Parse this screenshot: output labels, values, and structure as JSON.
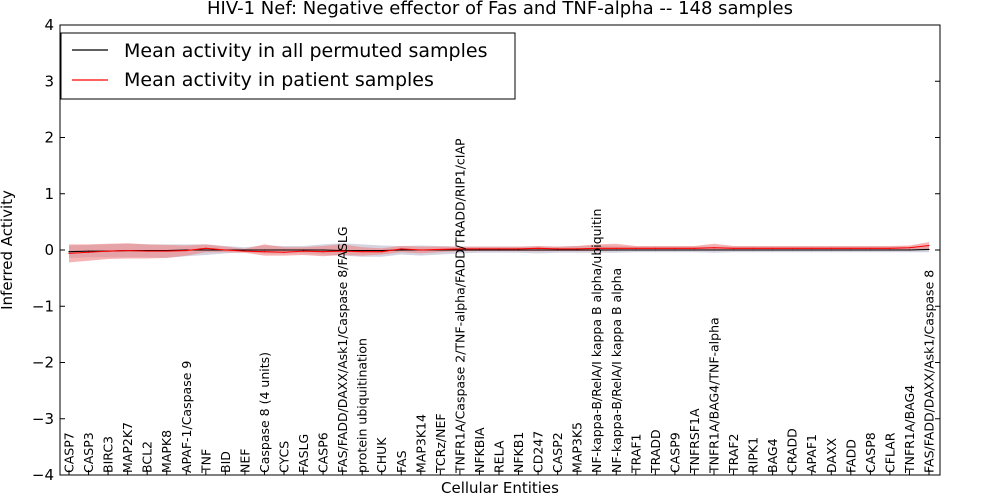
{
  "chart_data": {
    "type": "line",
    "title": "HIV-1 Nef: Negative effector of Fas and TNF-alpha -- 148 samples",
    "xlabel": "Cellular Entities",
    "ylabel": "Inferred Activity",
    "ylim": [
      -4,
      4
    ],
    "yticks": [
      "−4",
      "−3",
      "−2",
      "−1",
      "0",
      "1",
      "2",
      "3",
      "4"
    ],
    "ytick_values": [
      -4,
      -3,
      -2,
      -1,
      0,
      1,
      2,
      3,
      4
    ],
    "grid": false,
    "legend_position": "top-left",
    "categories": [
      "CASP7",
      "CASP3",
      "BIRC3",
      "MAP2K7",
      "BCL2",
      "MAPK8",
      "APAF-1/Caspase 9",
      "TNF",
      "BID",
      "NEF",
      "Caspase 8 (4 units)",
      "CYCS",
      "FASLG",
      "CASP6",
      "FAS/FADD/DAXX/Ask1/Caspase 8/FASLG",
      "protein ubiquitination",
      "CHUK",
      "FAS",
      "MAP3K14",
      "TCRz/NEF",
      "TNFR1A/Caspase 2/TNF-alpha/FADD/TRADD/RIP1/cIAP",
      "NFKBIA",
      "RELA",
      "NFKB1",
      "CD247",
      "CASP2",
      "MAP3K5",
      "NF-kappa-B/RelA/I kappa B alpha/ubiquitin",
      "NF-kappa-B/RelA/I kappa B alpha",
      "TRAF1",
      "TRADD",
      "CASP9",
      "TNFRSF1A",
      "TNFR1A/BAG4/TNF-alpha",
      "TRAF2",
      "RIPK1",
      "BAG4",
      "CRADD",
      "APAF1",
      "DAXX",
      "FADD",
      "CASP8",
      "CFLAR",
      "TNFR1A/BAG4",
      "FAS/FADD/DAXX/Ask1/Caspase 8"
    ],
    "series": [
      {
        "name": "Mean activity in all permuted samples",
        "color": "#000000",
        "band_color": "#b0b0c8",
        "values": [
          -0.03,
          -0.02,
          -0.02,
          -0.01,
          -0.01,
          -0.01,
          0.0,
          0.0,
          0.0,
          0.0,
          0.0,
          0.0,
          0.0,
          0.0,
          -0.01,
          -0.01,
          -0.01,
          0.0,
          0.0,
          0.0,
          0.0,
          0.0,
          0.0,
          0.0,
          0.0,
          0.0,
          0.0,
          0.0,
          0.0,
          0.0,
          0.0,
          0.0,
          0.0,
          0.0,
          0.0,
          0.0,
          0.0,
          0.0,
          0.0,
          0.0,
          0.0,
          0.0,
          0.0,
          0.0,
          0.01
        ],
        "lower": [
          -0.14,
          -0.13,
          -0.13,
          -0.13,
          -0.13,
          -0.14,
          -0.11,
          -0.09,
          -0.06,
          -0.04,
          -0.06,
          -0.06,
          -0.06,
          -0.08,
          -0.1,
          -0.12,
          -0.12,
          -0.08,
          -0.1,
          -0.08,
          -0.06,
          -0.05,
          -0.05,
          -0.05,
          -0.06,
          -0.05,
          -0.05,
          -0.05,
          -0.05,
          -0.04,
          -0.04,
          -0.04,
          -0.04,
          -0.05,
          -0.04,
          -0.04,
          -0.04,
          -0.04,
          -0.04,
          -0.04,
          -0.04,
          -0.04,
          -0.04,
          -0.04,
          -0.04
        ],
        "upper": [
          0.08,
          0.09,
          0.1,
          0.11,
          0.1,
          0.1,
          0.1,
          0.1,
          0.07,
          0.05,
          0.08,
          0.07,
          0.07,
          0.1,
          0.12,
          0.1,
          0.08,
          0.07,
          0.08,
          0.07,
          0.06,
          0.06,
          0.06,
          0.06,
          0.06,
          0.06,
          0.07,
          0.08,
          0.07,
          0.06,
          0.06,
          0.06,
          0.06,
          0.06,
          0.06,
          0.06,
          0.06,
          0.06,
          0.06,
          0.06,
          0.06,
          0.06,
          0.06,
          0.06,
          0.07
        ]
      },
      {
        "name": "Mean activity in patient samples",
        "color": "#ff0000",
        "band_color": "#f08080",
        "values": [
          -0.06,
          -0.04,
          -0.02,
          -0.01,
          -0.02,
          -0.02,
          -0.01,
          0.03,
          0.0,
          -0.02,
          -0.03,
          -0.04,
          -0.02,
          -0.03,
          -0.02,
          -0.03,
          -0.03,
          0.02,
          0.0,
          0.01,
          0.02,
          0.02,
          0.02,
          0.02,
          0.03,
          0.02,
          0.02,
          0.03,
          0.03,
          0.03,
          0.03,
          0.03,
          0.03,
          0.04,
          0.03,
          0.03,
          0.03,
          0.03,
          0.03,
          0.03,
          0.03,
          0.03,
          0.03,
          0.04,
          0.08
        ],
        "lower": [
          -0.22,
          -0.19,
          -0.16,
          -0.15,
          -0.15,
          -0.14,
          -0.1,
          -0.04,
          -0.04,
          -0.05,
          -0.1,
          -0.1,
          -0.09,
          -0.11,
          -0.09,
          -0.1,
          -0.08,
          -0.04,
          -0.06,
          -0.04,
          -0.02,
          -0.02,
          -0.02,
          -0.02,
          -0.02,
          -0.02,
          -0.02,
          -0.02,
          -0.01,
          -0.01,
          -0.01,
          -0.01,
          -0.01,
          0.0,
          -0.01,
          -0.01,
          -0.01,
          -0.01,
          -0.01,
          -0.01,
          -0.01,
          -0.01,
          -0.01,
          0.0,
          0.02
        ],
        "upper": [
          0.1,
          0.1,
          0.11,
          0.12,
          0.1,
          0.09,
          0.08,
          0.1,
          0.06,
          0.02,
          0.1,
          0.05,
          0.05,
          0.07,
          0.1,
          0.05,
          0.03,
          0.07,
          0.06,
          0.06,
          0.06,
          0.06,
          0.06,
          0.06,
          0.07,
          0.06,
          0.07,
          0.1,
          0.11,
          0.07,
          0.07,
          0.07,
          0.07,
          0.11,
          0.07,
          0.07,
          0.07,
          0.07,
          0.07,
          0.07,
          0.07,
          0.07,
          0.07,
          0.08,
          0.14
        ]
      }
    ]
  }
}
